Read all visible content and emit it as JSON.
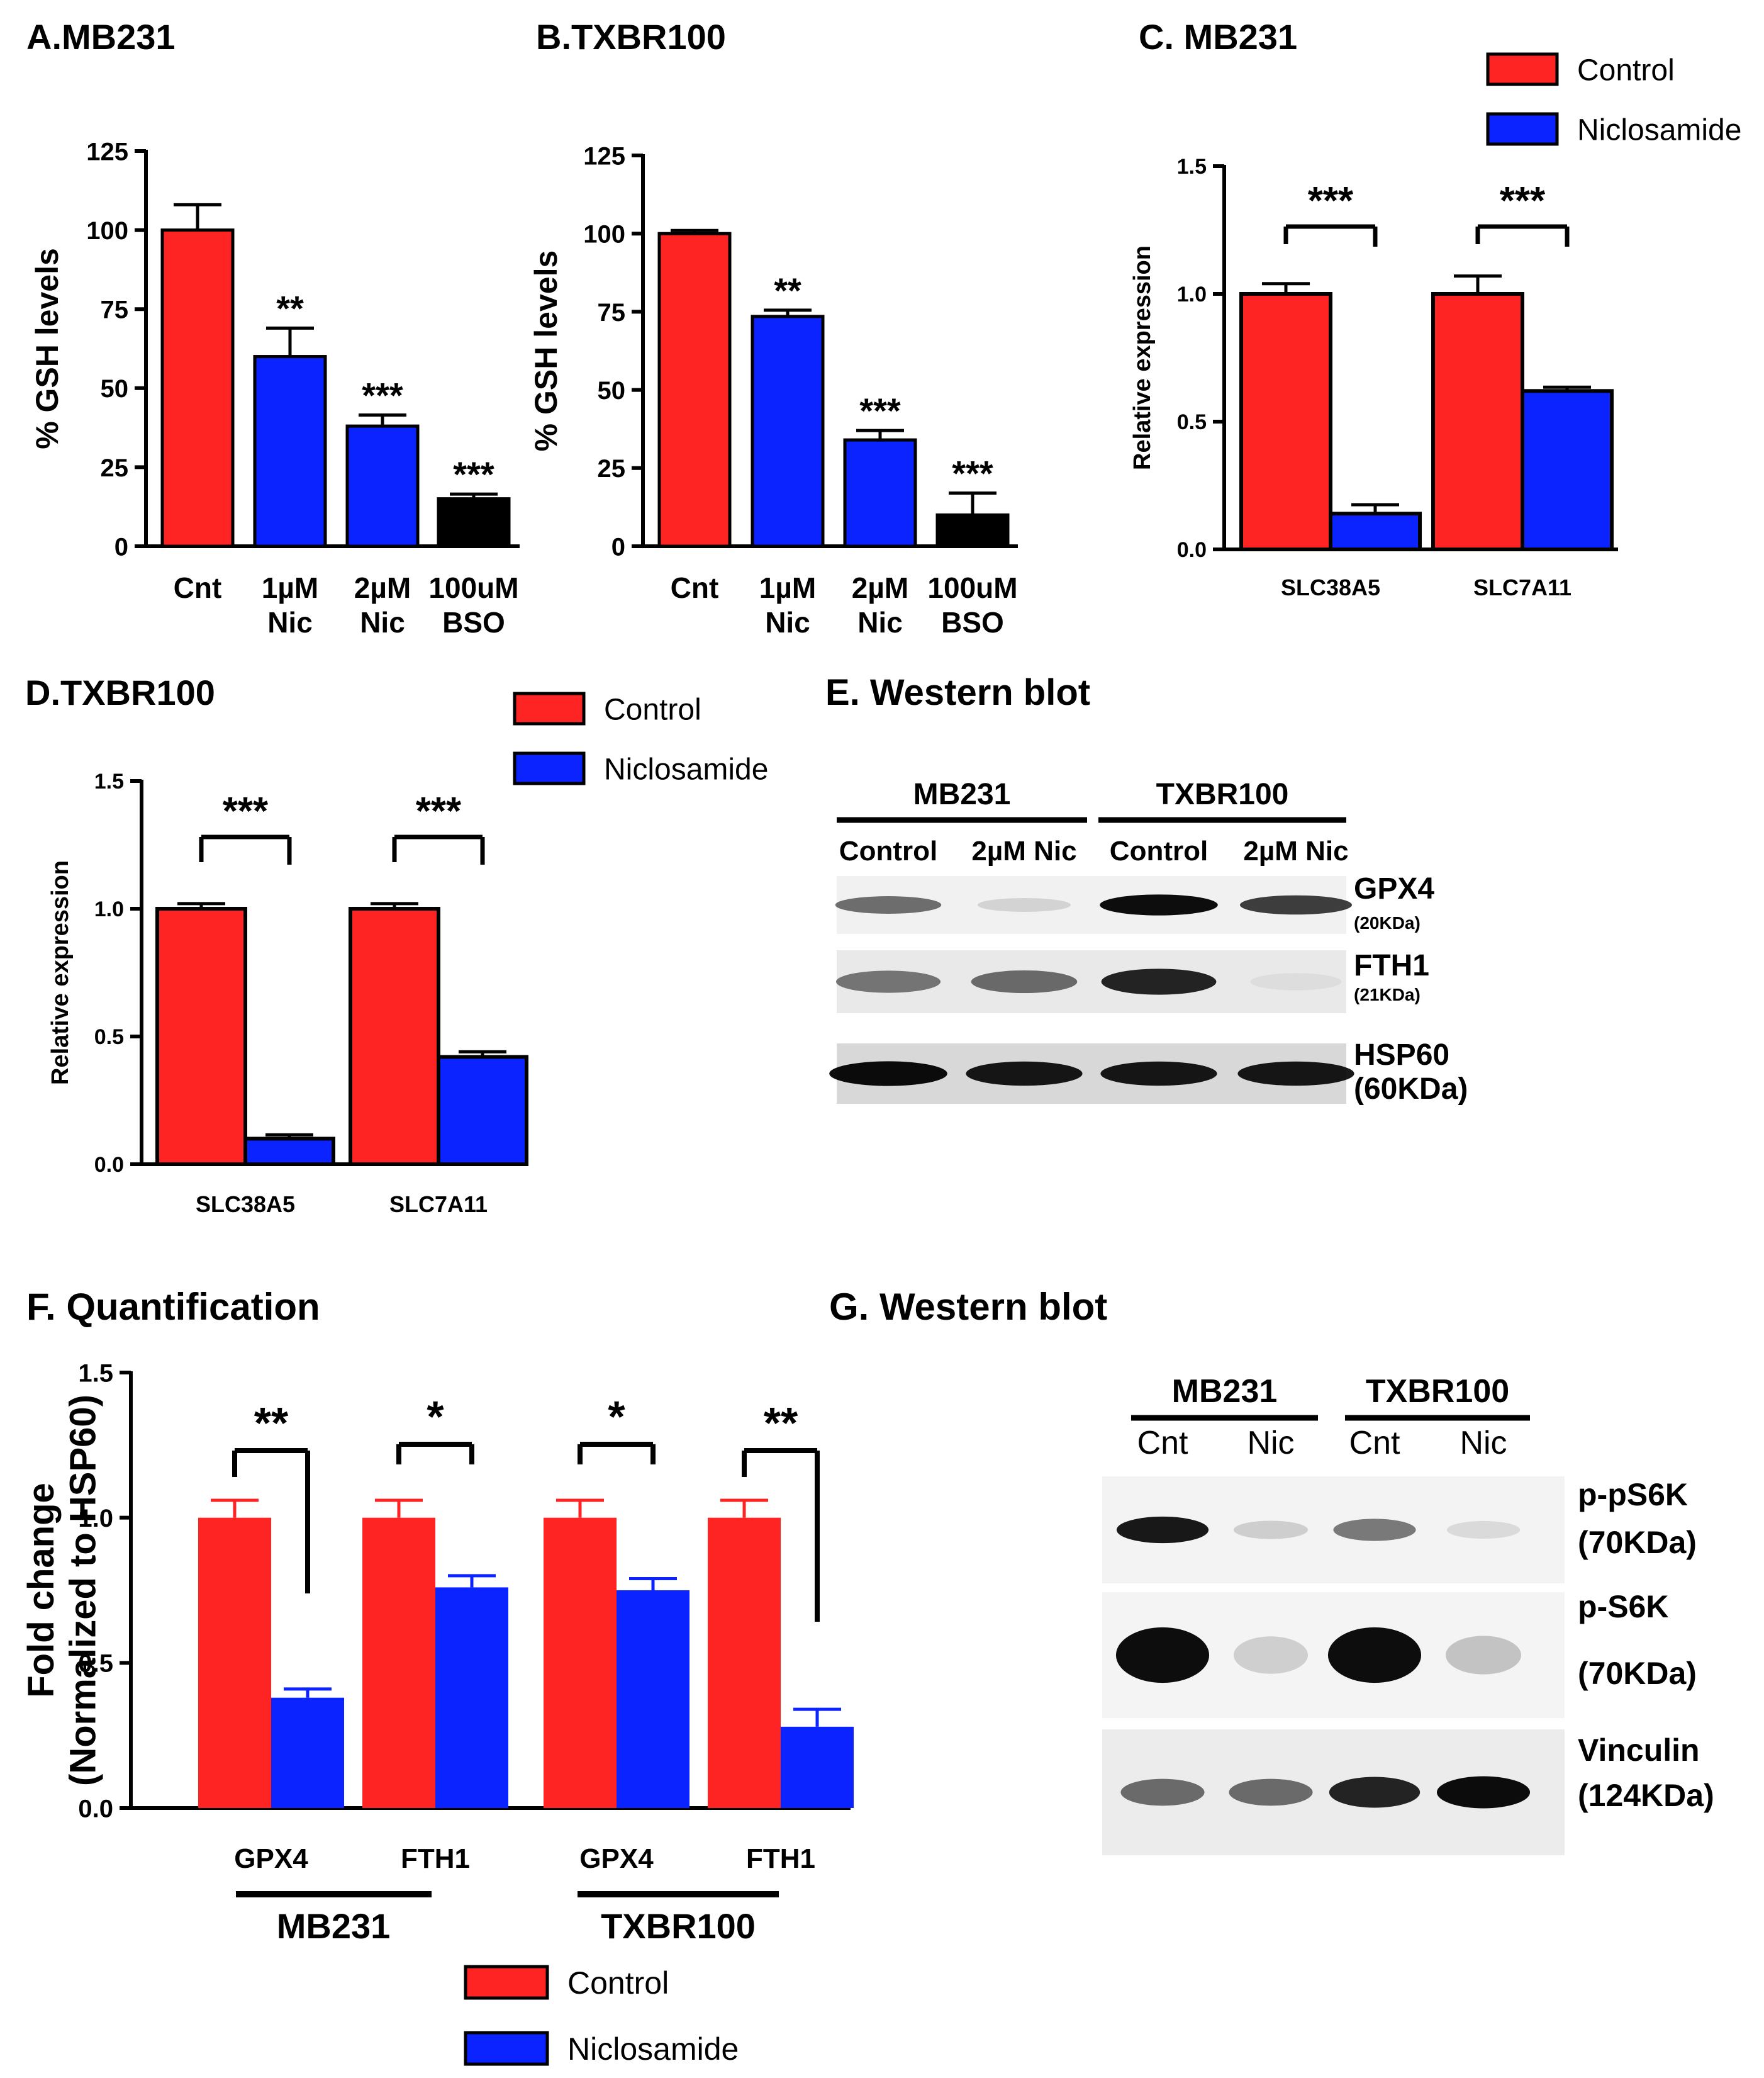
{
  "colors": {
    "control": "#ff2424",
    "niclosamide": "#0a23ff",
    "bso": "#000000",
    "axis": "#000000"
  },
  "chart_data": [
    {
      "panel": "A",
      "type": "bar",
      "title": "A.MB231",
      "ylabel": "% GSH levels",
      "ylim": [
        0,
        125
      ],
      "yticks": [
        "0",
        "25",
        "50",
        "75",
        "100",
        "125"
      ],
      "categories": [
        [
          "Cnt"
        ],
        [
          "1µM",
          "Nic"
        ],
        [
          "2µM",
          "Nic"
        ],
        [
          "100uM",
          "BSO"
        ]
      ],
      "values": [
        100,
        60,
        38,
        15
      ],
      "errors": [
        8,
        9,
        3.5,
        1.5
      ],
      "significance": [
        "",
        "**",
        "***",
        "***"
      ]
    },
    {
      "panel": "B",
      "type": "bar",
      "title": "B.TXBR100",
      "ylabel": "% GSH levels",
      "ylim": [
        0,
        125
      ],
      "yticks": [
        "0",
        "25",
        "50",
        "75",
        "100",
        "125"
      ],
      "categories": [
        [
          "Cnt"
        ],
        [
          "1µM",
          "Nic"
        ],
        [
          "2µM",
          "Nic"
        ],
        [
          "100uM",
          "BSO"
        ]
      ],
      "values": [
        100,
        73.5,
        34,
        10
      ],
      "errors": [
        1,
        2,
        3,
        7
      ],
      "significance": [
        "",
        "**",
        "***",
        "***"
      ]
    },
    {
      "panel": "C",
      "type": "bar",
      "title": "C. MB231",
      "ylabel": "Relative expression",
      "ylim": [
        0,
        1.5
      ],
      "yticks": [
        "0.0",
        "0.5",
        "1.0",
        "1.5"
      ],
      "categories": [
        "SLC38A5",
        "SLC7A11"
      ],
      "series": [
        {
          "name": "Control",
          "values": [
            1.0,
            1.0
          ],
          "errors": [
            0.04,
            0.07
          ]
        },
        {
          "name": "Niclosamide",
          "values": [
            0.14,
            0.62
          ],
          "errors": [
            0.035,
            0.015
          ]
        }
      ],
      "significance": [
        "***",
        "***"
      ],
      "legend": [
        "Control",
        "Niclosamide"
      ]
    },
    {
      "panel": "D",
      "type": "bar",
      "title": "D.TXBR100",
      "ylabel": "Relative expression",
      "ylim": [
        0,
        1.5
      ],
      "yticks": [
        "0.0",
        "0.5",
        "1.0",
        "1.5"
      ],
      "categories": [
        "SLC38A5",
        "SLC7A11"
      ],
      "series": [
        {
          "name": "Control",
          "values": [
            1.0,
            1.0
          ],
          "errors": [
            0.02,
            0.02
          ]
        },
        {
          "name": "Niclosamide",
          "values": [
            0.1,
            0.42
          ],
          "errors": [
            0.015,
            0.02
          ]
        }
      ],
      "significance": [
        "***",
        "***"
      ],
      "legend": [
        "Control",
        "Niclosamide"
      ]
    },
    {
      "panel": "F",
      "type": "bar",
      "title": "F. Quantification",
      "ylabel": [
        "Fold change",
        "(Normalized to HSP60)"
      ],
      "ylim": [
        0,
        1.5
      ],
      "yticks": [
        "0.0",
        "0.5",
        "1.0",
        "1.5"
      ],
      "categories": [
        "GPX4",
        "FTH1",
        "GPX4",
        "FTH1"
      ],
      "groups": [
        "MB231",
        "TXBR100"
      ],
      "series": [
        {
          "name": "Control",
          "values": [
            1.0,
            1.0,
            1.0,
            1.0
          ],
          "errors": [
            0.06,
            0.06,
            0.06,
            0.06
          ]
        },
        {
          "name": "Niclosamide",
          "values": [
            0.38,
            0.76,
            0.75,
            0.28
          ],
          "errors": [
            0.03,
            0.04,
            0.04,
            0.06
          ]
        }
      ],
      "significance": [
        "**",
        "*",
        "*",
        "**"
      ],
      "legend": [
        "Control",
        "Niclosamide"
      ]
    }
  ],
  "blots": [
    {
      "panel": "E",
      "title": "E. Western blot",
      "groups": [
        "MB231",
        "TXBR100"
      ],
      "lanes": [
        "Control",
        "2µM Nic",
        "Control",
        "2µM Nic"
      ],
      "rows": [
        {
          "name": "GPX4",
          "mw": "(20KDa)",
          "intensity": [
            0.55,
            0.12,
            0.95,
            0.75
          ]
        },
        {
          "name": "FTH1",
          "mw": "(21KDa)",
          "intensity": [
            0.5,
            0.55,
            0.85,
            0.05
          ]
        },
        {
          "name": "HSP60",
          "mw": "(60KDa)",
          "intensity": [
            0.95,
            0.9,
            0.9,
            0.9
          ]
        }
      ]
    },
    {
      "panel": "G",
      "title": "G. Western blot",
      "groups": [
        "MB231",
        "TXBR100"
      ],
      "lanes": [
        "Cnt",
        "Nic",
        "Cnt",
        "Nic"
      ],
      "rows": [
        {
          "name": "p-pS6K",
          "mw": "(70KDa)",
          "intensity": [
            0.9,
            0.15,
            0.5,
            0.1
          ]
        },
        {
          "name": "p-S6K",
          "mw": "(70KDa)",
          "intensity": [
            0.95,
            0.15,
            0.95,
            0.2
          ]
        },
        {
          "name": "Vinculin",
          "mw": "(124KDa)",
          "intensity": [
            0.55,
            0.55,
            0.85,
            0.95
          ]
        }
      ]
    }
  ]
}
